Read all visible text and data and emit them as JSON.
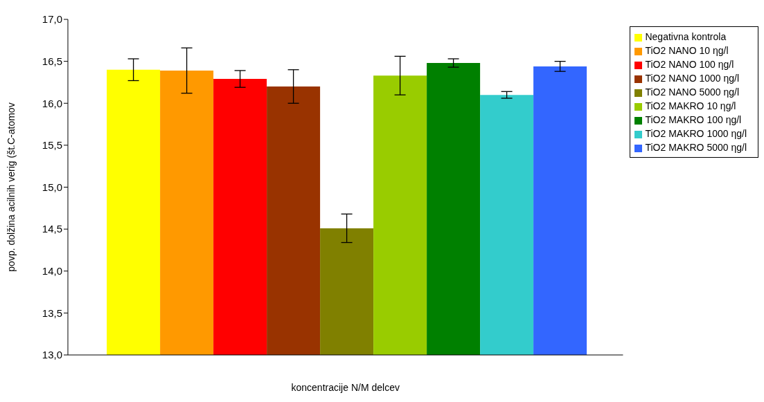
{
  "chart_data": {
    "type": "bar",
    "xlabel": "koncentracije N/M delcev",
    "ylabel": "povp. dolžina acilnih verig (št.C-atomov",
    "categories": [
      null
    ],
    "series": [
      {
        "name": "Negativna kontrola",
        "color": "#ffff00",
        "values": [
          16.4
        ],
        "errors": [
          0.13
        ]
      },
      {
        "name": "TiO2 NANO 10 ηg/l",
        "color": "#ff9900",
        "values": [
          16.39
        ],
        "errors": [
          0.27
        ]
      },
      {
        "name": "TiO2 NANO 100 ηg/l",
        "color": "#ff0000",
        "values": [
          16.29
        ],
        "errors": [
          0.1
        ]
      },
      {
        "name": "TiO2 NANO 1000 ηg/l",
        "color": "#993300",
        "values": [
          16.2
        ],
        "errors": [
          0.2
        ]
      },
      {
        "name": "TiO2 NANO 5000 ηg/l",
        "color": "#808000",
        "values": [
          14.51
        ],
        "errors": [
          0.17
        ]
      },
      {
        "name": "TiO2 MAKRO 10 ηg/l",
        "color": "#99cc00",
        "values": [
          16.33
        ],
        "errors": [
          0.23
        ]
      },
      {
        "name": "TiO2 MAKRO 100 ηg/l",
        "color": "#008000",
        "values": [
          16.48
        ],
        "errors": [
          0.05
        ]
      },
      {
        "name": "TiO2 MAKRO 1000 ηg/l",
        "color": "#33cccc",
        "values": [
          16.1
        ],
        "errors": [
          0.04
        ]
      },
      {
        "name": "TiO2 MAKRO 5000 ηg/l",
        "color": "#3366ff",
        "values": [
          16.44
        ],
        "errors": [
          0.06
        ]
      }
    ],
    "ylim": [
      13,
      17
    ],
    "yticks": [
      {
        "value": 13,
        "label": "13,0"
      },
      {
        "value": 13.5,
        "label": "13,5"
      },
      {
        "value": 14,
        "label": "14,0"
      },
      {
        "value": 14.5,
        "label": "14,5"
      },
      {
        "value": 15,
        "label": "15,0"
      },
      {
        "value": 15.5,
        "label": "15,5"
      },
      {
        "value": 16,
        "label": "16,0"
      },
      {
        "value": 16.5,
        "label": "16,5"
      },
      {
        "value": 17,
        "label": "17,0"
      }
    ],
    "grid": false,
    "legend": "top right"
  }
}
